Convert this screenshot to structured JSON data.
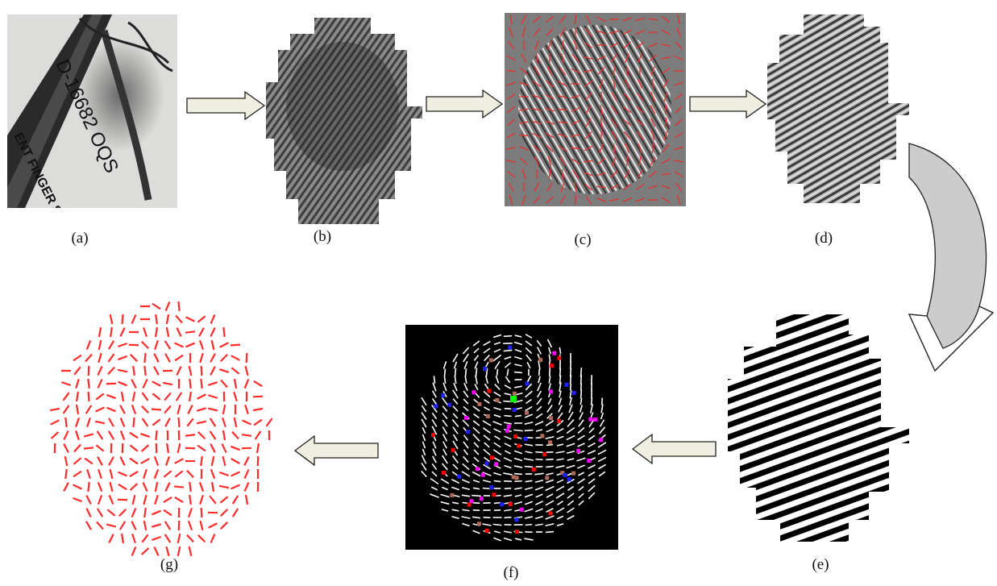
{
  "panels": {
    "a": {
      "label": "(a)",
      "latent_text": "D-16682 OQS",
      "card_text": "ENT FINGER SECTION"
    },
    "b": {
      "label": "(b)"
    },
    "c": {
      "label": "(c)"
    },
    "d": {
      "label": "(d)"
    },
    "e": {
      "label": "(e)"
    },
    "f": {
      "label": "(f)"
    },
    "g": {
      "label": "(g)"
    }
  },
  "colors": {
    "arrow_fill": "#f0eee0",
    "curved_arrow_fill": "#cccccc",
    "arrow_stroke": "#222222",
    "orientation_line": "#e8302a",
    "minutia_red": "#ff0000",
    "minutia_blue": "#2020ff",
    "minutia_magenta": "#ff00ff",
    "minutia_brown": "#b06a5a",
    "minutia_green": "#00ff00"
  }
}
